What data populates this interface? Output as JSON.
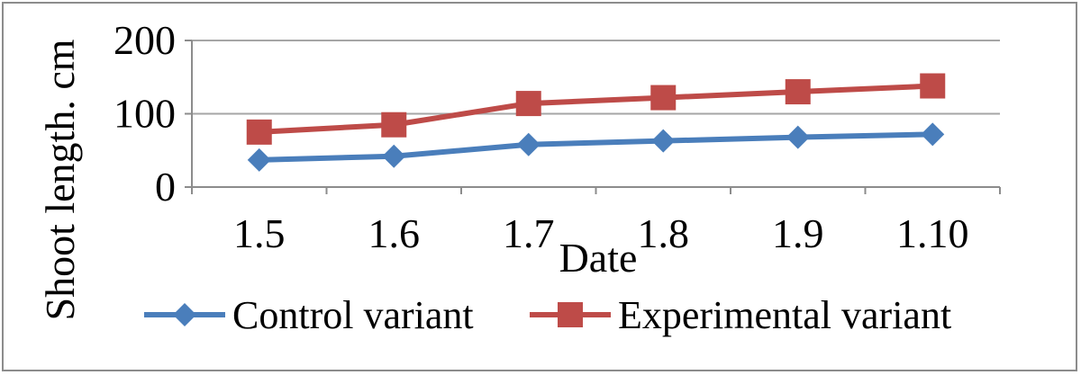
{
  "chart_data": {
    "type": "line",
    "title": "",
    "xlabel": "Date",
    "ylabel": "Shoot length. cm",
    "categories": [
      "1.5",
      "1.6",
      "1.7",
      "1.8",
      "1.9",
      "1.10"
    ],
    "ylim": [
      0,
      200
    ],
    "yticks": [
      "0",
      "100",
      "200"
    ],
    "grid": true,
    "legend_position": "bottom",
    "series": [
      {
        "name": "Control variant",
        "marker": "diamond",
        "color": "#4a7ebb",
        "values": [
          37,
          42,
          58,
          63,
          68,
          72
        ]
      },
      {
        "name": "Experimental variant",
        "marker": "square",
        "color": "#be4b48",
        "values": [
          75,
          85,
          114,
          122,
          130,
          138
        ]
      }
    ]
  }
}
